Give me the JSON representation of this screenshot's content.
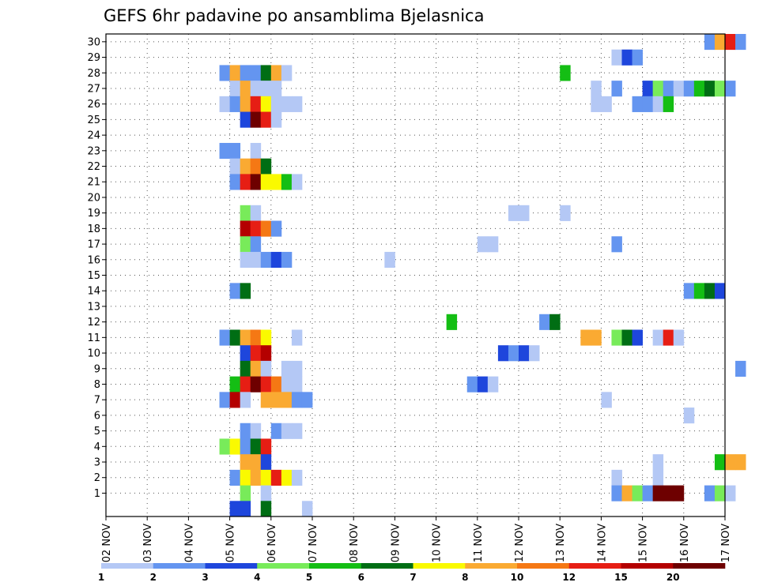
{
  "chart_data": {
    "type": "heatmap",
    "title": "GEFS 6hr padavine po ansamblima Bjelasnica",
    "x_tick_labels": [
      "02 NOV",
      "03 NOV",
      "04 NOV",
      "05 NOV",
      "06 NOV",
      "07 NOV",
      "08 NOV",
      "09 NOV",
      "10 NOV",
      "11 NOV",
      "12 NOV",
      "13 NOV",
      "14 NOV",
      "15 NOV",
      "16 NOV",
      "17 NOV"
    ],
    "y_tick_labels": [
      "1",
      "2",
      "3",
      "4",
      "5",
      "6",
      "7",
      "8",
      "9",
      "10",
      "11",
      "12",
      "13",
      "14",
      "15",
      "16",
      "17",
      "18",
      "19",
      "20",
      "21",
      "22",
      "23",
      "24",
      "25",
      "26",
      "27",
      "28",
      "29",
      "30"
    ],
    "time_step_hours": 6,
    "ensemble_members": 30,
    "grid": "dotted",
    "colorbar": {
      "position": "bottom",
      "labels": [
        "1",
        "2",
        "3",
        "4",
        "5",
        "6",
        "7",
        "8",
        "10",
        "12",
        "15",
        "20"
      ],
      "colors": [
        "#b4c8f5",
        "#6495f0",
        "#1e46dc",
        "#78eb5a",
        "#14be14",
        "#006e14",
        "#fafa00",
        "#faaa32",
        "#f57814",
        "#e61e14",
        "#b40000",
        "#6e0000"
      ]
    },
    "cells": [
      {
        "m": 30,
        "t": 58,
        "c": 2
      },
      {
        "m": 30,
        "t": 59,
        "c": 8
      },
      {
        "m": 30,
        "t": 60,
        "c": 10
      },
      {
        "m": 30,
        "t": 61,
        "c": 2
      },
      {
        "m": 29,
        "t": 49,
        "c": 1
      },
      {
        "m": 29,
        "t": 50,
        "c": 3
      },
      {
        "m": 29,
        "t": 51,
        "c": 2
      },
      {
        "m": 28,
        "t": 11,
        "c": 2
      },
      {
        "m": 28,
        "t": 12,
        "c": 8
      },
      {
        "m": 28,
        "t": 13,
        "c": 2
      },
      {
        "m": 28,
        "t": 14,
        "c": 2
      },
      {
        "m": 28,
        "t": 15,
        "c": 6
      },
      {
        "m": 28,
        "t": 16,
        "c": 8
      },
      {
        "m": 28,
        "t": 17,
        "c": 1
      },
      {
        "m": 28,
        "t": 44,
        "c": 5
      },
      {
        "m": 27,
        "t": 12,
        "c": 1
      },
      {
        "m": 27,
        "t": 13,
        "c": 8
      },
      {
        "m": 27,
        "t": 14,
        "c": 1
      },
      {
        "m": 27,
        "t": 15,
        "c": 1
      },
      {
        "m": 27,
        "t": 16,
        "c": 1
      },
      {
        "m": 27,
        "t": 47,
        "c": 1
      },
      {
        "m": 27,
        "t": 49,
        "c": 2
      },
      {
        "m": 27,
        "t": 52,
        "c": 3
      },
      {
        "m": 27,
        "t": 53,
        "c": 4
      },
      {
        "m": 27,
        "t": 54,
        "c": 2
      },
      {
        "m": 27,
        "t": 55,
        "c": 1
      },
      {
        "m": 27,
        "t": 56,
        "c": 2
      },
      {
        "m": 27,
        "t": 57,
        "c": 5
      },
      {
        "m": 27,
        "t": 58,
        "c": 6
      },
      {
        "m": 27,
        "t": 59,
        "c": 4
      },
      {
        "m": 27,
        "t": 60,
        "c": 2
      },
      {
        "m": 26,
        "t": 11,
        "c": 1
      },
      {
        "m": 26,
        "t": 12,
        "c": 2
      },
      {
        "m": 26,
        "t": 13,
        "c": 8
      },
      {
        "m": 26,
        "t": 14,
        "c": 10
      },
      {
        "m": 26,
        "t": 15,
        "c": 7
      },
      {
        "m": 26,
        "t": 16,
        "c": 1
      },
      {
        "m": 26,
        "t": 17,
        "c": 1
      },
      {
        "m": 26,
        "t": 18,
        "c": 1
      },
      {
        "m": 26,
        "t": 47,
        "c": 1
      },
      {
        "m": 26,
        "t": 48,
        "c": 1
      },
      {
        "m": 26,
        "t": 51,
        "c": 2
      },
      {
        "m": 26,
        "t": 52,
        "c": 2
      },
      {
        "m": 26,
        "t": 53,
        "c": 1
      },
      {
        "m": 26,
        "t": 54,
        "c": 5
      },
      {
        "m": 25,
        "t": 13,
        "c": 3
      },
      {
        "m": 25,
        "t": 14,
        "c": 12
      },
      {
        "m": 25,
        "t": 15,
        "c": 10
      },
      {
        "m": 25,
        "t": 16,
        "c": 1
      },
      {
        "m": 23,
        "t": 11,
        "c": 2
      },
      {
        "m": 23,
        "t": 12,
        "c": 2
      },
      {
        "m": 23,
        "t": 14,
        "c": 1
      },
      {
        "m": 22,
        "t": 12,
        "c": 1
      },
      {
        "m": 22,
        "t": 13,
        "c": 8
      },
      {
        "m": 22,
        "t": 14,
        "c": 9
      },
      {
        "m": 22,
        "t": 15,
        "c": 6
      },
      {
        "m": 21,
        "t": 12,
        "c": 2
      },
      {
        "m": 21,
        "t": 13,
        "c": 10
      },
      {
        "m": 21,
        "t": 14,
        "c": 12
      },
      {
        "m": 21,
        "t": 15,
        "c": 7
      },
      {
        "m": 21,
        "t": 16,
        "c": 7
      },
      {
        "m": 21,
        "t": 17,
        "c": 5
      },
      {
        "m": 21,
        "t": 18,
        "c": 1
      },
      {
        "m": 19,
        "t": 13,
        "c": 4
      },
      {
        "m": 19,
        "t": 14,
        "c": 1
      },
      {
        "m": 19,
        "t": 39,
        "c": 1
      },
      {
        "m": 19,
        "t": 40,
        "c": 1
      },
      {
        "m": 19,
        "t": 44,
        "c": 1
      },
      {
        "m": 18,
        "t": 13,
        "c": 11
      },
      {
        "m": 18,
        "t": 14,
        "c": 10
      },
      {
        "m": 18,
        "t": 15,
        "c": 9
      },
      {
        "m": 18,
        "t": 16,
        "c": 2
      },
      {
        "m": 17,
        "t": 13,
        "c": 4
      },
      {
        "m": 17,
        "t": 14,
        "c": 2
      },
      {
        "m": 17,
        "t": 36,
        "c": 1
      },
      {
        "m": 17,
        "t": 37,
        "c": 1
      },
      {
        "m": 17,
        "t": 49,
        "c": 2
      },
      {
        "m": 16,
        "t": 13,
        "c": 1
      },
      {
        "m": 16,
        "t": 14,
        "c": 1
      },
      {
        "m": 16,
        "t": 15,
        "c": 2
      },
      {
        "m": 16,
        "t": 16,
        "c": 3
      },
      {
        "m": 16,
        "t": 17,
        "c": 2
      },
      {
        "m": 16,
        "t": 27,
        "c": 1
      },
      {
        "m": 14,
        "t": 12,
        "c": 2
      },
      {
        "m": 14,
        "t": 13,
        "c": 6
      },
      {
        "m": 14,
        "t": 56,
        "c": 2
      },
      {
        "m": 14,
        "t": 57,
        "c": 5
      },
      {
        "m": 14,
        "t": 58,
        "c": 6
      },
      {
        "m": 14,
        "t": 59,
        "c": 3
      },
      {
        "m": 12,
        "t": 33,
        "c": 5
      },
      {
        "m": 12,
        "t": 42,
        "c": 2
      },
      {
        "m": 12,
        "t": 43,
        "c": 6
      },
      {
        "m": 11,
        "t": 11,
        "c": 2
      },
      {
        "m": 11,
        "t": 12,
        "c": 6
      },
      {
        "m": 11,
        "t": 13,
        "c": 8
      },
      {
        "m": 11,
        "t": 14,
        "c": 9
      },
      {
        "m": 11,
        "t": 15,
        "c": 7
      },
      {
        "m": 11,
        "t": 18,
        "c": 1
      },
      {
        "m": 11,
        "t": 46,
        "c": 8
      },
      {
        "m": 11,
        "t": 47,
        "c": 8
      },
      {
        "m": 11,
        "t": 49,
        "c": 4
      },
      {
        "m": 11,
        "t": 50,
        "c": 6
      },
      {
        "m": 11,
        "t": 51,
        "c": 3
      },
      {
        "m": 11,
        "t": 53,
        "c": 1
      },
      {
        "m": 11,
        "t": 54,
        "c": 10
      },
      {
        "m": 11,
        "t": 55,
        "c": 1
      },
      {
        "m": 10,
        "t": 13,
        "c": 3
      },
      {
        "m": 10,
        "t": 14,
        "c": 10
      },
      {
        "m": 10,
        "t": 15,
        "c": 11
      },
      {
        "m": 10,
        "t": 38,
        "c": 3
      },
      {
        "m": 10,
        "t": 39,
        "c": 2
      },
      {
        "m": 10,
        "t": 40,
        "c": 3
      },
      {
        "m": 10,
        "t": 41,
        "c": 1
      },
      {
        "m": 9,
        "t": 13,
        "c": 6
      },
      {
        "m": 9,
        "t": 14,
        "c": 8
      },
      {
        "m": 9,
        "t": 15,
        "c": 1
      },
      {
        "m": 9,
        "t": 17,
        "c": 1
      },
      {
        "m": 9,
        "t": 18,
        "c": 1
      },
      {
        "m": 9,
        "t": 61,
        "c": 2
      },
      {
        "m": 8,
        "t": 12,
        "c": 5
      },
      {
        "m": 8,
        "t": 13,
        "c": 10
      },
      {
        "m": 8,
        "t": 14,
        "c": 12
      },
      {
        "m": 8,
        "t": 15,
        "c": 10
      },
      {
        "m": 8,
        "t": 16,
        "c": 9
      },
      {
        "m": 8,
        "t": 17,
        "c": 1
      },
      {
        "m": 8,
        "t": 18,
        "c": 1
      },
      {
        "m": 8,
        "t": 35,
        "c": 2
      },
      {
        "m": 8,
        "t": 36,
        "c": 3
      },
      {
        "m": 8,
        "t": 37,
        "c": 1
      },
      {
        "m": 7,
        "t": 11,
        "c": 2
      },
      {
        "m": 7,
        "t": 12,
        "c": 11
      },
      {
        "m": 7,
        "t": 13,
        "c": 1
      },
      {
        "m": 7,
        "t": 15,
        "c": 8
      },
      {
        "m": 7,
        "t": 16,
        "c": 8
      },
      {
        "m": 7,
        "t": 17,
        "c": 8
      },
      {
        "m": 7,
        "t": 18,
        "c": 2
      },
      {
        "m": 7,
        "t": 19,
        "c": 2
      },
      {
        "m": 7,
        "t": 48,
        "c": 1
      },
      {
        "m": 6,
        "t": 56,
        "c": 1
      },
      {
        "m": 5,
        "t": 13,
        "c": 2
      },
      {
        "m": 5,
        "t": 14,
        "c": 1
      },
      {
        "m": 5,
        "t": 16,
        "c": 2
      },
      {
        "m": 5,
        "t": 17,
        "c": 1
      },
      {
        "m": 5,
        "t": 18,
        "c": 1
      },
      {
        "m": 4,
        "t": 11,
        "c": 4
      },
      {
        "m": 4,
        "t": 12,
        "c": 7
      },
      {
        "m": 4,
        "t": 13,
        "c": 2
      },
      {
        "m": 4,
        "t": 14,
        "c": 6
      },
      {
        "m": 4,
        "t": 15,
        "c": 10
      },
      {
        "m": 3,
        "t": 13,
        "c": 8
      },
      {
        "m": 3,
        "t": 14,
        "c": 8
      },
      {
        "m": 3,
        "t": 15,
        "c": 3
      },
      {
        "m": 3,
        "t": 53,
        "c": 1
      },
      {
        "m": 3,
        "t": 59,
        "c": 5
      },
      {
        "m": 3,
        "t": 60,
        "c": 8
      },
      {
        "m": 3,
        "t": 61,
        "c": 8
      },
      {
        "m": 2,
        "t": 12,
        "c": 2
      },
      {
        "m": 2,
        "t": 13,
        "c": 7
      },
      {
        "m": 2,
        "t": 14,
        "c": 8
      },
      {
        "m": 2,
        "t": 15,
        "c": 7
      },
      {
        "m": 2,
        "t": 16,
        "c": 10
      },
      {
        "m": 2,
        "t": 17,
        "c": 7
      },
      {
        "m": 2,
        "t": 18,
        "c": 1
      },
      {
        "m": 2,
        "t": 49,
        "c": 1
      },
      {
        "m": 2,
        "t": 53,
        "c": 1
      },
      {
        "m": 1,
        "t": 13,
        "c": 4
      },
      {
        "m": 1,
        "t": 15,
        "c": 1
      },
      {
        "m": 1,
        "t": 49,
        "c": 2
      },
      {
        "m": 1,
        "t": 50,
        "c": 8
      },
      {
        "m": 1,
        "t": 51,
        "c": 4
      },
      {
        "m": 1,
        "t": 52,
        "c": 2
      },
      {
        "m": 1,
        "t": 53,
        "c": 12
      },
      {
        "m": 1,
        "t": 54,
        "c": 12
      },
      {
        "m": 1,
        "t": 55,
        "c": 12
      },
      {
        "m": 1,
        "t": 58,
        "c": 2
      },
      {
        "m": 1,
        "t": 59,
        "c": 4
      },
      {
        "m": 1,
        "t": 60,
        "c": 1
      },
      {
        "m": 0,
        "t": 12,
        "c": 3
      },
      {
        "m": 0,
        "t": 13,
        "c": 3
      },
      {
        "m": 0,
        "t": 15,
        "c": 6
      },
      {
        "m": 0,
        "t": 19,
        "c": 1
      }
    ]
  }
}
